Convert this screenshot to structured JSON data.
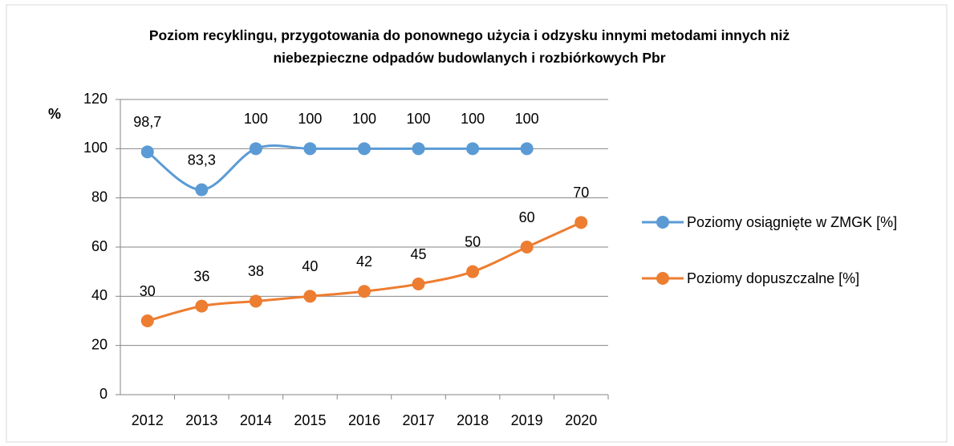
{
  "chart_data": {
    "type": "line",
    "title": "Poziom recyklingu, przygotowania do ponownego użycia i odzysku innymi metodami innych niż niebezpieczne odpadów budowlanych i rozbiórkowych Pbr",
    "y_label": "%",
    "categories": [
      "2012",
      "2013",
      "2014",
      "2015",
      "2016",
      "2017",
      "2018",
      "2019",
      "2020"
    ],
    "series": [
      {
        "name": "Poziomy osiągnięte w ZMGK [%]",
        "color": "#5b9bd5",
        "values": [
          98.7,
          83.3,
          100,
          100,
          100,
          100,
          100,
          100,
          null
        ],
        "value_labels": [
          "98,7",
          "83,3",
          "100",
          "100",
          "100",
          "100",
          "100",
          "100",
          null
        ]
      },
      {
        "name": "Poziomy dopuszczalne [%]",
        "color": "#ed7d31",
        "values": [
          30,
          36,
          38,
          40,
          42,
          45,
          50,
          60,
          70
        ]
      }
    ],
    "ylim": [
      0,
      120
    ],
    "yticks": [
      0,
      20,
      40,
      60,
      80,
      100,
      120
    ],
    "grid": true,
    "legend": "right"
  }
}
